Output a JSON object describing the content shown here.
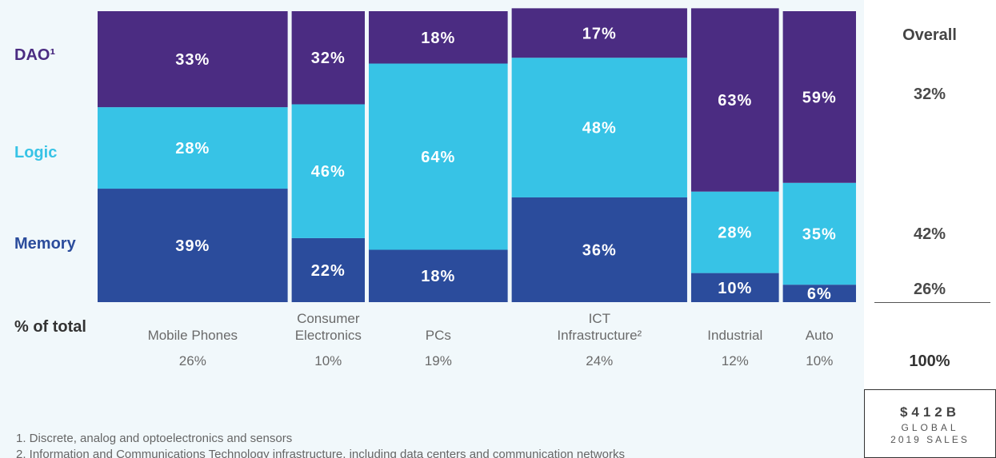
{
  "chart_data": {
    "type": "mekko",
    "categories": [
      "Mobile Phones",
      "Consumer Electronics",
      "PCs",
      "ICT Infrastructure²",
      "Industrial",
      "Auto"
    ],
    "shares": [
      26,
      10,
      19,
      24,
      12,
      10
    ],
    "share_labels": [
      "26%",
      "10%",
      "19%",
      "24%",
      "12%",
      "10%"
    ],
    "share_title": "% of total",
    "series": [
      {
        "name": "Memory",
        "color": "#2b4c9c",
        "values": [
          39,
          22,
          18,
          36,
          10,
          6
        ],
        "value_labels": [
          "39%",
          "22%",
          "18%",
          "36%",
          "10%",
          "6%"
        ]
      },
      {
        "name": "Logic",
        "color": "#37c3e6",
        "values": [
          28,
          46,
          64,
          48,
          28,
          35
        ],
        "value_labels": [
          "28%",
          "46%",
          "64%",
          "48%",
          "28%",
          "35%"
        ]
      },
      {
        "name": "DAO¹",
        "color": "#4b2c82",
        "values": [
          33,
          32,
          18,
          17,
          63,
          59
        ],
        "value_labels": [
          "33%",
          "32%",
          "18%",
          "17%",
          "63%",
          "59%"
        ]
      }
    ],
    "overall": {
      "title": "Overall",
      "values": [
        26,
        42,
        32
      ],
      "value_labels": [
        "26%",
        "42%",
        "32%"
      ],
      "total": "100%"
    },
    "sales": {
      "amount": "$412B",
      "line1": "GLOBAL",
      "line2": "2019 SALES"
    },
    "footnotes": [
      "1. Discrete, analog and optoelectronics and sensors",
      "2. Information and Communications Technology infrastructure, including data centers and communication networks"
    ]
  }
}
